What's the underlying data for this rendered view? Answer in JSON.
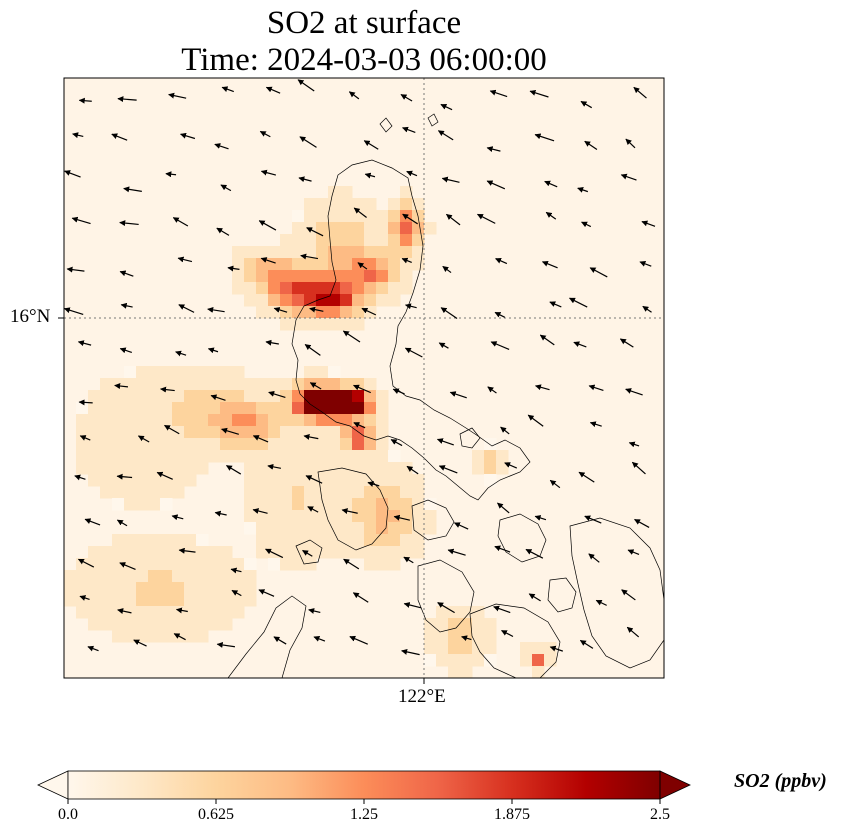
{
  "title": {
    "line1": "SO2 at surface",
    "line2": "Time: 2024-03-03 06:00:00"
  },
  "map": {
    "lat_label": "16°N",
    "lon_label": "122°E",
    "gridline_style": "dotted",
    "features": [
      "coastlines",
      "wind-vectors",
      "so2-field"
    ]
  },
  "colorbar": {
    "label": "SO2 (ppbv)",
    "ticks": [
      "0.0",
      "0.625",
      "1.25",
      "1.875",
      "2.5"
    ],
    "min": 0.0,
    "max": 2.5,
    "colormap": "OrRd",
    "colors": [
      "#fff7ec",
      "#fee8c8",
      "#fdd49e",
      "#fdbb84",
      "#fc8d59",
      "#ef6548",
      "#d7301f",
      "#b30000",
      "#7f0000"
    ]
  }
}
